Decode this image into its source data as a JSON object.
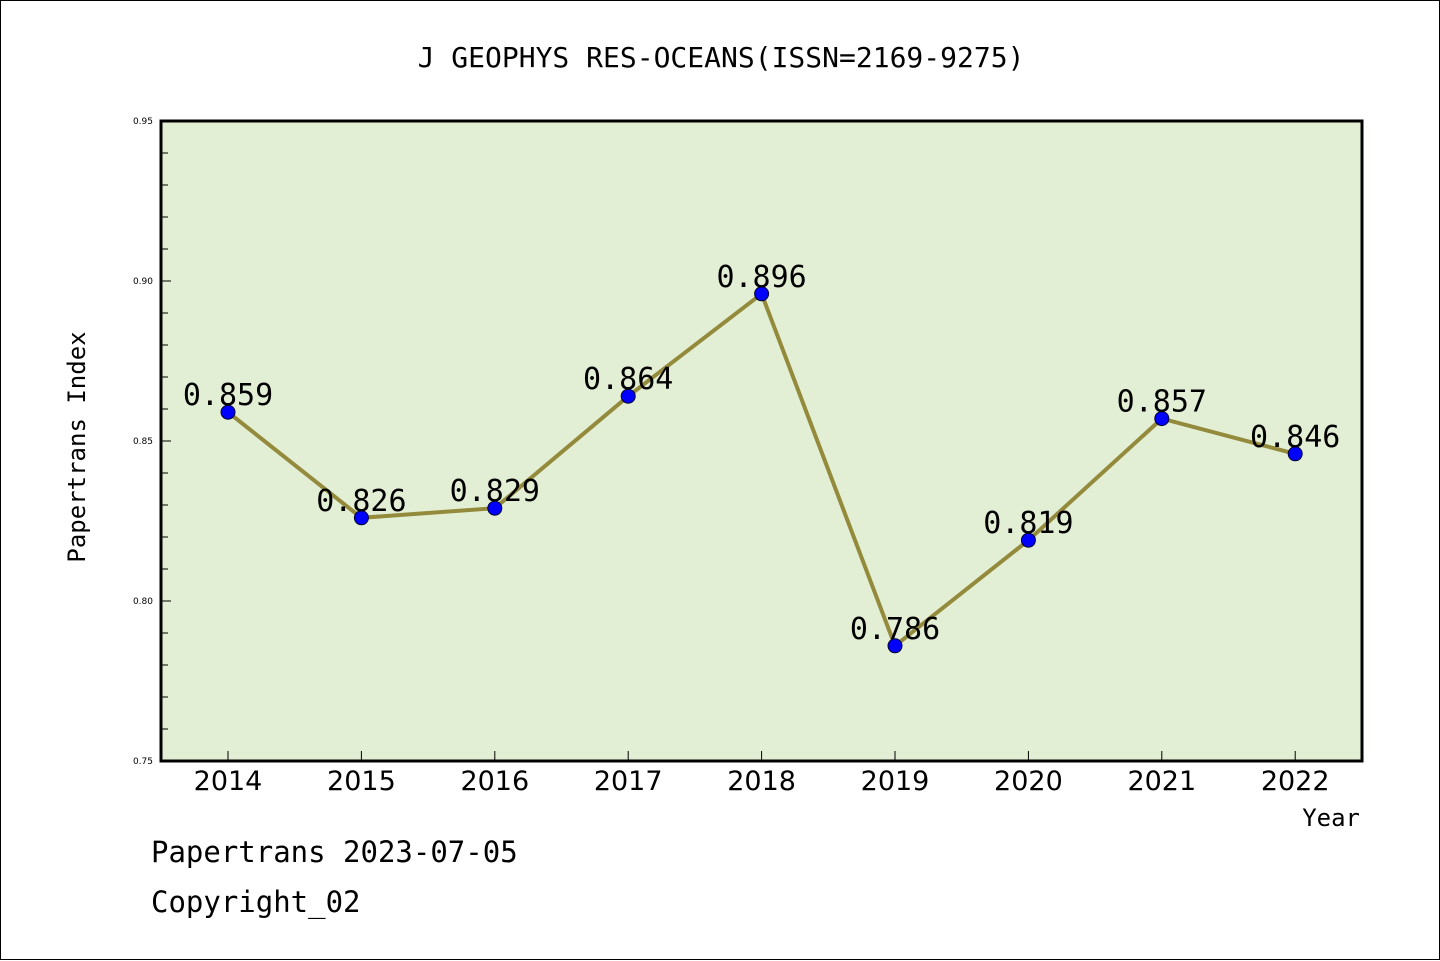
{
  "chart_data": {
    "type": "line",
    "title": "J GEOPHYS RES-OCEANS(ISSN=2169-9275)",
    "xlabel": "Year",
    "ylabel": "Papertrans Index",
    "categories": [
      "2014",
      "2015",
      "2016",
      "2017",
      "2018",
      "2019",
      "2020",
      "2021",
      "2022"
    ],
    "values": [
      0.859,
      0.826,
      0.829,
      0.864,
      0.896,
      0.786,
      0.819,
      0.857,
      0.846
    ],
    "data_labels": [
      "0.859",
      "0.826",
      "0.829",
      "0.864",
      "0.896",
      "0.786",
      "0.819",
      "0.857",
      "0.846"
    ],
    "ylim": [
      0.75,
      0.95
    ],
    "yticks": [
      0.75,
      0.8,
      0.85,
      0.9,
      0.95
    ],
    "ytick_labels": [
      "0.75",
      "0.80",
      "0.85",
      "0.90",
      "0.95"
    ],
    "grid": false,
    "colors": {
      "plot_background": "#e2efd4",
      "line": "#948a3c",
      "marker": "#0000ff"
    }
  },
  "footer": {
    "line1": "Papertrans 2023-07-05",
    "line2": "Copyright_02"
  }
}
